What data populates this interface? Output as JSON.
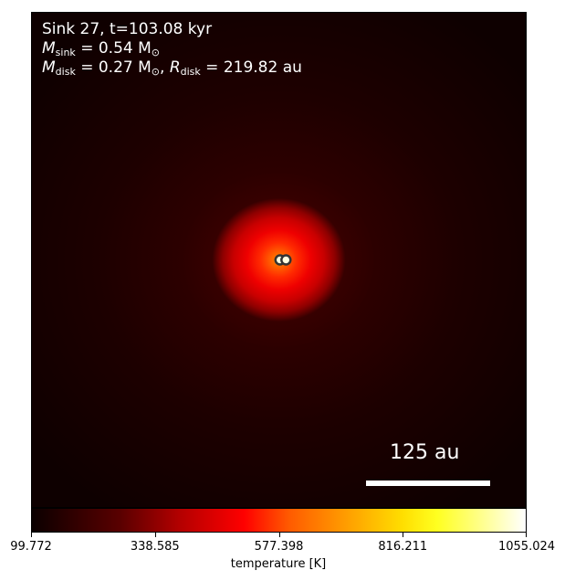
{
  "chart_data": {
    "type": "heatmap",
    "info": {
      "line1": "Sink 27, t=103.08 kyr",
      "sink_symbol": "M",
      "sink_subscript": "sink",
      "sink_value": " = 0.54 M",
      "sun_symbol": "⊙",
      "disk_symbol": "M",
      "disk_subscript": "disk",
      "disk_value": " = 0.27 M",
      "radius_symbol": "R",
      "radius_subscript": "disk",
      "radius_value": " = 219.82 au"
    },
    "scale_bar": {
      "label": "125 au",
      "length_au": 125
    },
    "colorbar": {
      "label": "temperature [K]",
      "min": 99.772,
      "max": 1055.024,
      "ticks": [
        99.772,
        338.585,
        577.398,
        816.211,
        1055.024
      ],
      "tick_labels": [
        "99.772",
        "338.585",
        "577.398",
        "816.211",
        "1055.024"
      ],
      "colormap": "hot"
    },
    "sinks": [
      {
        "name": "sink-a",
        "dx_au": -2.5,
        "dy_au": 0
      },
      {
        "name": "sink-b",
        "dx_au": 3.5,
        "dy_au": 0
      }
    ],
    "colors": {
      "marker_fill": "#ffffe0",
      "marker_edge": "#333333",
      "annotation": "#ffffff"
    }
  }
}
